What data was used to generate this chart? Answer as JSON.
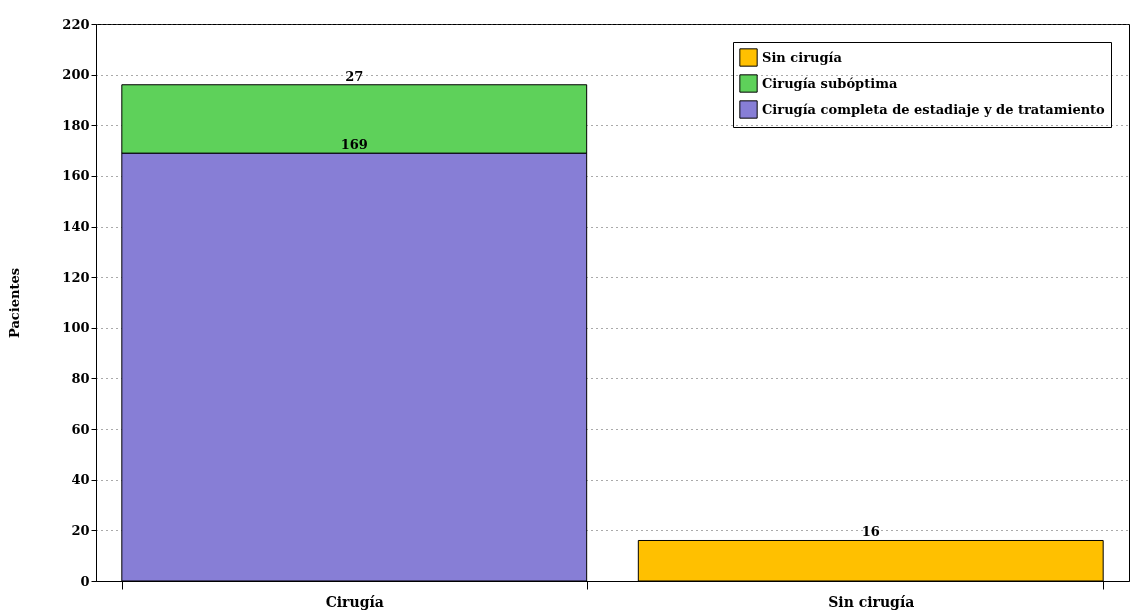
{
  "chart_data": {
    "type": "bar",
    "stacked": true,
    "ylabel": "Pacientes",
    "categories": [
      "Cirugía",
      "Sin cirugía"
    ],
    "series": [
      {
        "name": "Cirugía completa de estadiaje y de tratamiento",
        "color": "#877ed6",
        "values": [
          169,
          null
        ]
      },
      {
        "name": "Cirugía subóptima",
        "color": "#5ed15a",
        "values": [
          27,
          null
        ]
      },
      {
        "name": "Sin cirugía",
        "color": "#ffc000",
        "values": [
          null,
          16
        ]
      }
    ],
    "ylim": [
      0,
      220
    ],
    "yticks": [
      0,
      20,
      40,
      60,
      80,
      100,
      120,
      140,
      160,
      180,
      200,
      220
    ],
    "grid": "y",
    "legend": "top right",
    "data_labels": true
  }
}
